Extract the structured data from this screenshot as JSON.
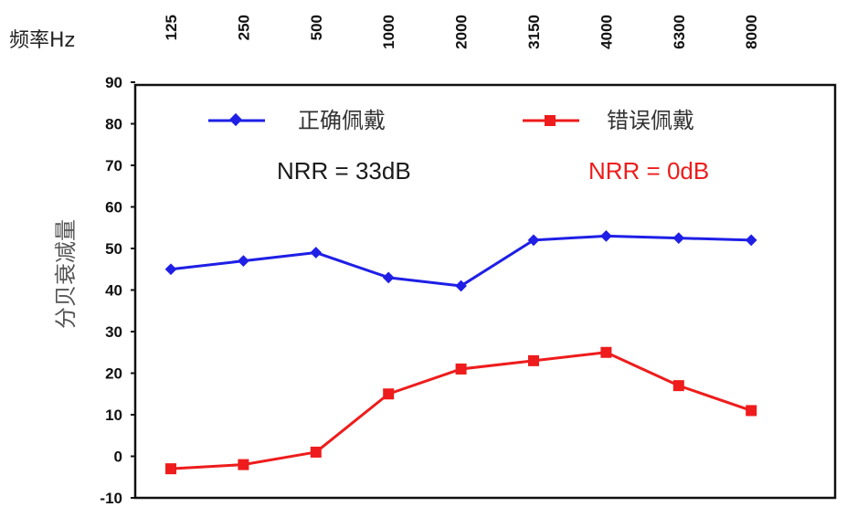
{
  "chart_data": {
    "type": "line",
    "xlabel": "频率Hz",
    "ylabel": "分贝衰减量",
    "categories": [
      "125",
      "250",
      "500",
      "1000",
      "2000",
      "3150",
      "4000",
      "6300",
      "8000"
    ],
    "ylim": [
      -10,
      90
    ],
    "yticks": [
      90,
      80,
      70,
      60,
      50,
      40,
      30,
      20,
      10,
      0,
      -10
    ],
    "grid": false,
    "legend": "top",
    "series": [
      {
        "name": "正确佩戴",
        "color": "#1f1fe6",
        "marker": "diamond",
        "values": [
          45,
          47,
          49,
          43,
          41,
          52,
          53,
          52.5,
          52
        ]
      },
      {
        "name": "错误佩戴",
        "color": "#ee1c1c",
        "marker": "square",
        "values": [
          -3,
          -2,
          1,
          15,
          21,
          23,
          25,
          17,
          11
        ]
      }
    ],
    "annotations": [
      {
        "text": "NRR = 33dB",
        "color": "#1a1a1a"
      },
      {
        "text": "NRR = 0dB",
        "color": "#ee1c1c"
      }
    ]
  }
}
